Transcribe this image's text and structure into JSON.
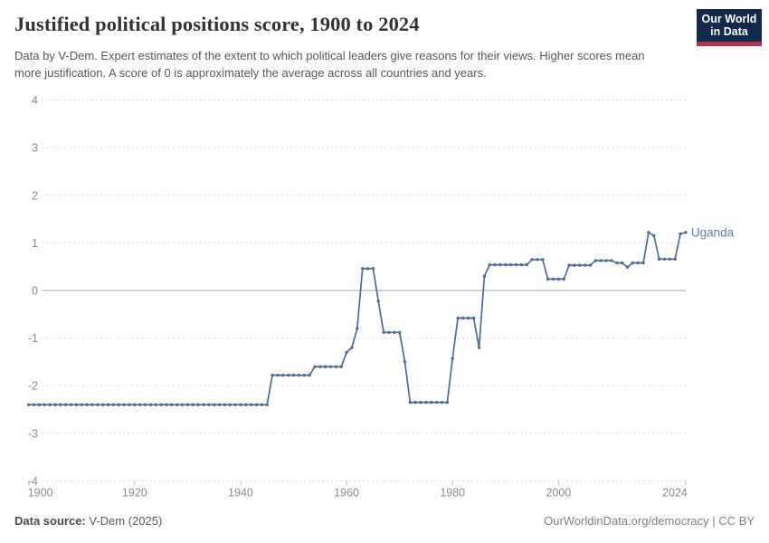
{
  "header": {
    "title": "Justified political positions score, 1900 to 2024",
    "subtitle": "Data by V-Dem. Expert estimates of the extent to which political leaders give reasons for their views. Higher scores mean more justification. A score of 0 is approximately the average across all countries and years.",
    "logo": {
      "line1": "Our World",
      "line2": "in Data"
    }
  },
  "footer": {
    "source_label": "Data source:",
    "source_value": " V-Dem (2025)",
    "credit": "OurWorldinData.org/democracy | CC BY"
  },
  "chart_data": {
    "type": "line",
    "title": "Justified political positions score, 1900 to 2024",
    "xlabel": "",
    "ylabel": "",
    "xlim": [
      1900,
      2024
    ],
    "ylim": [
      -4,
      4
    ],
    "xticks": [
      1900,
      1920,
      1940,
      1960,
      1980,
      2000,
      2024
    ],
    "yticks": [
      4,
      3,
      2,
      1,
      0,
      -1,
      -2,
      -3,
      -4
    ],
    "grid": "horizontal-dashed, solid zero line",
    "legend_position": "end-of-line label",
    "colors": {
      "line": "#4c6a9c",
      "entity_label": "#5d7db3",
      "grid": "#dcdcdc",
      "zero_line": "#a6a6a6",
      "tick_text": "#8b8b8b"
    },
    "series": [
      {
        "name": "Uganda",
        "start_year": 1900,
        "end_year": 2024,
        "values": [
          -2.4,
          -2.4,
          -2.4,
          -2.4,
          -2.4,
          -2.4,
          -2.4,
          -2.4,
          -2.4,
          -2.4,
          -2.4,
          -2.4,
          -2.4,
          -2.4,
          -2.4,
          -2.4,
          -2.4,
          -2.4,
          -2.4,
          -2.4,
          -2.4,
          -2.4,
          -2.4,
          -2.4,
          -2.4,
          -2.4,
          -2.4,
          -2.4,
          -2.4,
          -2.4,
          -2.4,
          -2.4,
          -2.4,
          -2.4,
          -2.4,
          -2.4,
          -2.4,
          -2.4,
          -2.4,
          -2.4,
          -2.4,
          -2.4,
          -2.4,
          -2.4,
          -2.4,
          -2.4,
          -1.78,
          -1.78,
          -1.78,
          -1.78,
          -1.78,
          -1.78,
          -1.78,
          -1.78,
          -1.6,
          -1.6,
          -1.6,
          -1.6,
          -1.6,
          -1.6,
          -1.3,
          -1.2,
          -0.8,
          0.46,
          0.46,
          0.46,
          -0.22,
          -0.88,
          -0.88,
          -0.88,
          -0.88,
          -1.5,
          -2.35,
          -2.35,
          -2.35,
          -2.35,
          -2.35,
          -2.35,
          -2.35,
          -2.35,
          -1.43,
          -0.58,
          -0.58,
          -0.58,
          -0.58,
          -1.2,
          0.3,
          0.54,
          0.54,
          0.54,
          0.54,
          0.54,
          0.54,
          0.54,
          0.54,
          0.65,
          0.65,
          0.65,
          0.24,
          0.24,
          0.24,
          0.24,
          0.53,
          0.53,
          0.53,
          0.53,
          0.53,
          0.63,
          0.63,
          0.63,
          0.63,
          0.58,
          0.58,
          0.49,
          0.58,
          0.58,
          0.58,
          1.22,
          1.15,
          0.66,
          0.66,
          0.66,
          0.66,
          1.19,
          1.22
        ]
      }
    ]
  }
}
